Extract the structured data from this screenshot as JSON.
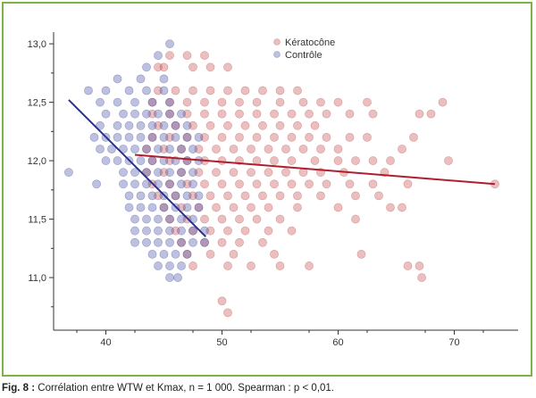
{
  "caption": {
    "label": "Fig. 8 :",
    "text": " Corrélation entre WTW et Kmax, n = 1 000. Spearman : p < 0,01."
  },
  "chart_data": {
    "type": "scatter",
    "title": "",
    "xlabel": "",
    "ylabel": "",
    "xlim": [
      35.5,
      75.5
    ],
    "ylim": [
      10.55,
      13.1
    ],
    "x_ticks": [
      40,
      50,
      60,
      70
    ],
    "x_tick_labels": [
      "40",
      "50",
      "60",
      "70"
    ],
    "y_ticks": [
      11.0,
      11.5,
      12.0,
      12.5,
      13.0
    ],
    "y_tick_labels": [
      "11,0",
      "11,5",
      "12,0",
      "12,5",
      "13,0"
    ],
    "grid": false,
    "legend_position": "top-center",
    "series": [
      {
        "name": "Kératocône",
        "color": "#c0392b",
        "points": [
          [
            44.5,
            12.8
          ],
          [
            45.5,
            12.9
          ],
          [
            47,
            12.9
          ],
          [
            48.5,
            12.9
          ],
          [
            45,
            12.8
          ],
          [
            47.5,
            12.8
          ],
          [
            49,
            12.8
          ],
          [
            50.5,
            12.8
          ],
          [
            44.5,
            12.6
          ],
          [
            46,
            12.6
          ],
          [
            47.5,
            12.6
          ],
          [
            49,
            12.6
          ],
          [
            50.5,
            12.6
          ],
          [
            52,
            12.6
          ],
          [
            53.5,
            12.6
          ],
          [
            55,
            12.6
          ],
          [
            56.5,
            12.6
          ],
          [
            44,
            12.5
          ],
          [
            45.5,
            12.5
          ],
          [
            47,
            12.5
          ],
          [
            48.5,
            12.5
          ],
          [
            50,
            12.5
          ],
          [
            51.5,
            12.5
          ],
          [
            53,
            12.5
          ],
          [
            55,
            12.5
          ],
          [
            57,
            12.5
          ],
          [
            58.5,
            12.5
          ],
          [
            60,
            12.5
          ],
          [
            62.5,
            12.5
          ],
          [
            69,
            12.5
          ],
          [
            44,
            12.4
          ],
          [
            45.5,
            12.4
          ],
          [
            47,
            12.4
          ],
          [
            48.5,
            12.4
          ],
          [
            50,
            12.4
          ],
          [
            51.5,
            12.4
          ],
          [
            53,
            12.4
          ],
          [
            54.5,
            12.4
          ],
          [
            56,
            12.4
          ],
          [
            57.5,
            12.4
          ],
          [
            59,
            12.4
          ],
          [
            61,
            12.4
          ],
          [
            63,
            12.4
          ],
          [
            67,
            12.4
          ],
          [
            68,
            12.4
          ],
          [
            44.5,
            12.3
          ],
          [
            46,
            12.3
          ],
          [
            47.5,
            12.3
          ],
          [
            49,
            12.3
          ],
          [
            50.5,
            12.3
          ],
          [
            52,
            12.3
          ],
          [
            53.5,
            12.3
          ],
          [
            55,
            12.3
          ],
          [
            56.5,
            12.3
          ],
          [
            58,
            12.3
          ],
          [
            44,
            12.2
          ],
          [
            45.5,
            12.2
          ],
          [
            47,
            12.2
          ],
          [
            48.5,
            12.2
          ],
          [
            50,
            12.2
          ],
          [
            51.5,
            12.2
          ],
          [
            53,
            12.2
          ],
          [
            54.5,
            12.2
          ],
          [
            56,
            12.2
          ],
          [
            57.5,
            12.2
          ],
          [
            59,
            12.2
          ],
          [
            61,
            12.2
          ],
          [
            62.5,
            12.2
          ],
          [
            66.5,
            12.2
          ],
          [
            43.5,
            12.1
          ],
          [
            45,
            12.1
          ],
          [
            46.5,
            12.1
          ],
          [
            48,
            12.1
          ],
          [
            49.5,
            12.1
          ],
          [
            51,
            12.1
          ],
          [
            52.5,
            12.1
          ],
          [
            54,
            12.1
          ],
          [
            55.5,
            12.1
          ],
          [
            57,
            12.1
          ],
          [
            58.5,
            12.1
          ],
          [
            60,
            12.1
          ],
          [
            65.5,
            12.1
          ],
          [
            44,
            12.0
          ],
          [
            45.5,
            12.0
          ],
          [
            47,
            12.0
          ],
          [
            48.5,
            12.0
          ],
          [
            50,
            12.0
          ],
          [
            51.5,
            12.0
          ],
          [
            53,
            12.0
          ],
          [
            54.5,
            12.0
          ],
          [
            56,
            12.0
          ],
          [
            58,
            12.0
          ],
          [
            60,
            12.0
          ],
          [
            61.5,
            12.0
          ],
          [
            63,
            12.0
          ],
          [
            64.5,
            12.0
          ],
          [
            69.5,
            12.0
          ],
          [
            43.5,
            11.9
          ],
          [
            45,
            11.9
          ],
          [
            46.5,
            11.9
          ],
          [
            48,
            11.9
          ],
          [
            49.5,
            11.9
          ],
          [
            51,
            11.9
          ],
          [
            52.5,
            11.9
          ],
          [
            54,
            11.9
          ],
          [
            55.5,
            11.9
          ],
          [
            57,
            11.9
          ],
          [
            58.5,
            11.9
          ],
          [
            60.5,
            11.9
          ],
          [
            64,
            11.9
          ],
          [
            44,
            11.8
          ],
          [
            45.5,
            11.8
          ],
          [
            47,
            11.8
          ],
          [
            48.5,
            11.8
          ],
          [
            50,
            11.8
          ],
          [
            51.5,
            11.8
          ],
          [
            53,
            11.8
          ],
          [
            54.5,
            11.8
          ],
          [
            56,
            11.8
          ],
          [
            57.5,
            11.8
          ],
          [
            59,
            11.8
          ],
          [
            61,
            11.8
          ],
          [
            63,
            11.8
          ],
          [
            66,
            11.8
          ],
          [
            73.5,
            11.8
          ],
          [
            44.5,
            11.7
          ],
          [
            46,
            11.7
          ],
          [
            47.5,
            11.7
          ],
          [
            49,
            11.7
          ],
          [
            50.5,
            11.7
          ],
          [
            52,
            11.7
          ],
          [
            53.5,
            11.7
          ],
          [
            55,
            11.7
          ],
          [
            56.5,
            11.7
          ],
          [
            58.5,
            11.7
          ],
          [
            61.5,
            11.7
          ],
          [
            63.5,
            11.7
          ],
          [
            45,
            11.6
          ],
          [
            46.5,
            11.6
          ],
          [
            48,
            11.6
          ],
          [
            49.5,
            11.6
          ],
          [
            51,
            11.6
          ],
          [
            52.5,
            11.6
          ],
          [
            54,
            11.6
          ],
          [
            56.5,
            11.6
          ],
          [
            60,
            11.6
          ],
          [
            64.5,
            11.6
          ],
          [
            65.5,
            11.6
          ],
          [
            45.5,
            11.5
          ],
          [
            47,
            11.5
          ],
          [
            48.5,
            11.5
          ],
          [
            50,
            11.5
          ],
          [
            51.5,
            11.5
          ],
          [
            53,
            11.5
          ],
          [
            55,
            11.5
          ],
          [
            61.5,
            11.5
          ],
          [
            46,
            11.4
          ],
          [
            47.5,
            11.4
          ],
          [
            49,
            11.4
          ],
          [
            50.5,
            11.4
          ],
          [
            52,
            11.4
          ],
          [
            54,
            11.4
          ],
          [
            56,
            11.4
          ],
          [
            46.5,
            11.3
          ],
          [
            48.5,
            11.3
          ],
          [
            50,
            11.3
          ],
          [
            51.5,
            11.3
          ],
          [
            53.5,
            11.3
          ],
          [
            47,
            11.2
          ],
          [
            49,
            11.2
          ],
          [
            51,
            11.2
          ],
          [
            54.5,
            11.2
          ],
          [
            62,
            11.2
          ],
          [
            47.5,
            11.1
          ],
          [
            50.5,
            11.1
          ],
          [
            52.5,
            11.1
          ],
          [
            55,
            11.1
          ],
          [
            57.5,
            11.1
          ],
          [
            66,
            11.1
          ],
          [
            67,
            11.1
          ],
          [
            67.2,
            11.0
          ],
          [
            50,
            10.8
          ],
          [
            50.5,
            10.7
          ]
        ]
      },
      {
        "name": "Contrôle",
        "color": "#3f4a9c",
        "points": [
          [
            45.5,
            13.0
          ],
          [
            44.5,
            12.9
          ],
          [
            43.5,
            12.8
          ],
          [
            41,
            12.7
          ],
          [
            43,
            12.7
          ],
          [
            45,
            12.7
          ],
          [
            38.5,
            12.6
          ],
          [
            40,
            12.6
          ],
          [
            42,
            12.6
          ],
          [
            43.5,
            12.6
          ],
          [
            45,
            12.6
          ],
          [
            39.5,
            12.5
          ],
          [
            41,
            12.5
          ],
          [
            42.5,
            12.5
          ],
          [
            44,
            12.5
          ],
          [
            45.5,
            12.5
          ],
          [
            40,
            12.4
          ],
          [
            41.5,
            12.4
          ],
          [
            42.5,
            12.4
          ],
          [
            43.5,
            12.4
          ],
          [
            44.5,
            12.4
          ],
          [
            45.5,
            12.4
          ],
          [
            46.5,
            12.4
          ],
          [
            39.5,
            12.3
          ],
          [
            41,
            12.3
          ],
          [
            42,
            12.3
          ],
          [
            43,
            12.3
          ],
          [
            44,
            12.3
          ],
          [
            45,
            12.3
          ],
          [
            46,
            12.3
          ],
          [
            47,
            12.3
          ],
          [
            39,
            12.2
          ],
          [
            40,
            12.2
          ],
          [
            41,
            12.2
          ],
          [
            42,
            12.2
          ],
          [
            43,
            12.2
          ],
          [
            44,
            12.2
          ],
          [
            45,
            12.2
          ],
          [
            46,
            12.2
          ],
          [
            47,
            12.2
          ],
          [
            48,
            12.2
          ],
          [
            39.5,
            12.1
          ],
          [
            40.5,
            12.1
          ],
          [
            41.5,
            12.1
          ],
          [
            42.5,
            12.1
          ],
          [
            43.5,
            12.1
          ],
          [
            44.5,
            12.1
          ],
          [
            45.5,
            12.1
          ],
          [
            46.5,
            12.1
          ],
          [
            47.5,
            12.1
          ],
          [
            40,
            12.0
          ],
          [
            41,
            12.0
          ],
          [
            42,
            12.0
          ],
          [
            43,
            12.0
          ],
          [
            44,
            12.0
          ],
          [
            45,
            12.0
          ],
          [
            46,
            12.0
          ],
          [
            47,
            12.0
          ],
          [
            48,
            12.0
          ],
          [
            36.8,
            11.9
          ],
          [
            41.5,
            11.9
          ],
          [
            42.5,
            11.9
          ],
          [
            43.5,
            11.9
          ],
          [
            44.5,
            11.9
          ],
          [
            45.5,
            11.9
          ],
          [
            46.5,
            11.9
          ],
          [
            47.5,
            11.9
          ],
          [
            39.2,
            11.8
          ],
          [
            41.5,
            11.8
          ],
          [
            42.5,
            11.8
          ],
          [
            43.5,
            11.8
          ],
          [
            44.5,
            11.8
          ],
          [
            45.5,
            11.8
          ],
          [
            46.5,
            11.8
          ],
          [
            47.5,
            11.8
          ],
          [
            42,
            11.7
          ],
          [
            43,
            11.7
          ],
          [
            44,
            11.7
          ],
          [
            45,
            11.7
          ],
          [
            46,
            11.7
          ],
          [
            47,
            11.7
          ],
          [
            48,
            11.7
          ],
          [
            42,
            11.6
          ],
          [
            43,
            11.6
          ],
          [
            44,
            11.6
          ],
          [
            45,
            11.6
          ],
          [
            46,
            11.6
          ],
          [
            47,
            11.6
          ],
          [
            48,
            11.6
          ],
          [
            42.5,
            11.5
          ],
          [
            43.5,
            11.5
          ],
          [
            44.5,
            11.5
          ],
          [
            45.5,
            11.5
          ],
          [
            46.5,
            11.5
          ],
          [
            47.5,
            11.5
          ],
          [
            42.5,
            11.4
          ],
          [
            43.5,
            11.4
          ],
          [
            44.5,
            11.4
          ],
          [
            45.5,
            11.4
          ],
          [
            46.5,
            11.4
          ],
          [
            47.5,
            11.4
          ],
          [
            48.5,
            11.4
          ],
          [
            42.5,
            11.3
          ],
          [
            43.5,
            11.3
          ],
          [
            44.5,
            11.3
          ],
          [
            45.5,
            11.3
          ],
          [
            46.5,
            11.3
          ],
          [
            47.5,
            11.3
          ],
          [
            48.5,
            11.3
          ],
          [
            44,
            11.2
          ],
          [
            45,
            11.2
          ],
          [
            46,
            11.2
          ],
          [
            47,
            11.2
          ],
          [
            44.5,
            11.1
          ],
          [
            45.5,
            11.1
          ],
          [
            46.5,
            11.1
          ],
          [
            45.5,
            11.0
          ],
          [
            46.2,
            11.0
          ]
        ]
      }
    ],
    "trendlines": [
      {
        "series": "Kératocône",
        "color": "#b01e2e",
        "x": [
          42.5,
          73.5
        ],
        "y": [
          12.05,
          11.8
        ]
      },
      {
        "series": "Contrôle",
        "color": "#2b3282",
        "x": [
          36.8,
          48.6
        ],
        "y": [
          12.52,
          11.35
        ]
      }
    ]
  }
}
